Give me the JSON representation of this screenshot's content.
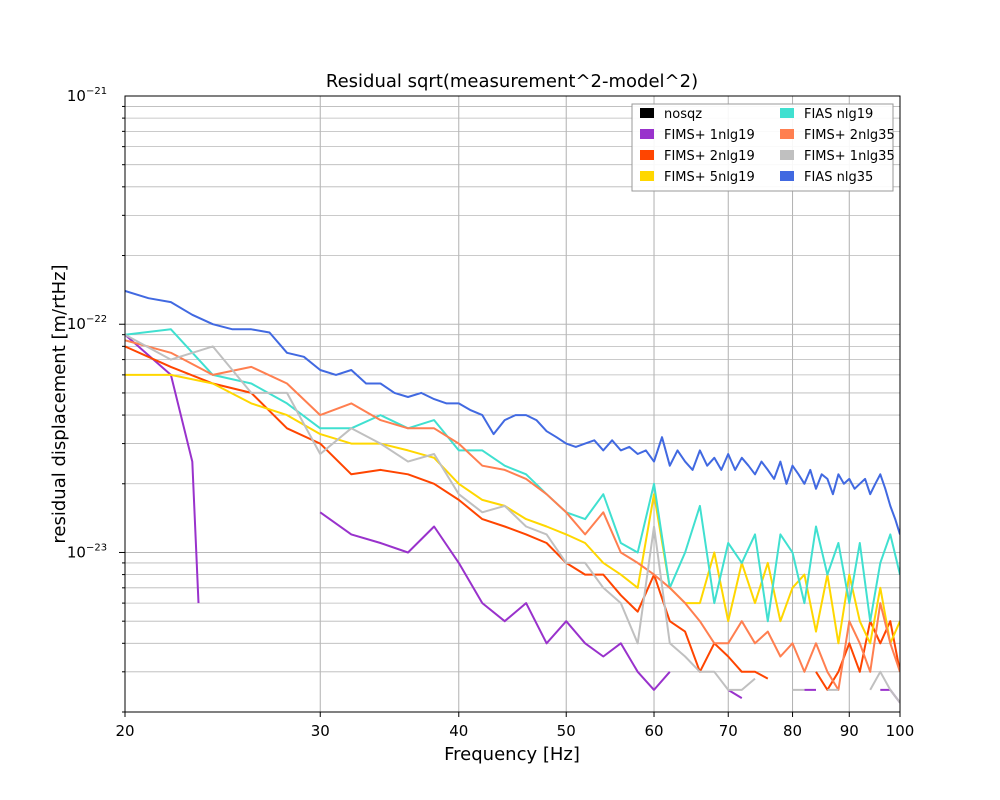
{
  "chart_data": {
    "type": "line",
    "title": "Residual sqrt(measurement^2-model^2)",
    "xlabel": "Frequency [Hz]",
    "ylabel": "residual displacement [m/rtHz]",
    "xscale": "log",
    "yscale": "log",
    "xlim": [
      20,
      100
    ],
    "ylim": [
      2e-24,
      1e-21
    ],
    "xticks": [
      20,
      30,
      40,
      50,
      60,
      70,
      80,
      90,
      100
    ],
    "xtick_labels": [
      "20",
      "30",
      "40",
      "50",
      "60",
      "70",
      "80",
      "90",
      "100"
    ],
    "yticks": [
      1e-23,
      1e-22,
      1e-21
    ],
    "ytick_labels": [
      {
        "base": "10",
        "exp": "−23"
      },
      {
        "base": "10",
        "exp": "−22"
      },
      {
        "base": "10",
        "exp": "−21"
      }
    ],
    "grid": true,
    "legend_position": "top-right",
    "legend_columns": 2,
    "series": [
      {
        "name": "nosqz",
        "color": "#000000",
        "x": [],
        "values": []
      },
      {
        "name": "FIMS+ 1nlg19",
        "color": "#9932CC",
        "x": [
          20,
          22,
          23,
          23.3,
          29,
          30,
          32,
          34,
          36,
          38,
          40,
          42,
          44,
          46,
          48,
          50,
          52,
          54,
          56,
          58,
          60,
          62,
          64,
          66,
          68,
          70,
          72,
          74,
          76,
          78,
          80,
          82,
          84,
          86,
          88,
          90,
          92,
          94,
          96,
          98,
          100
        ],
        "values": [
          9e-23,
          6e-23,
          2.5e-23,
          6e-24,
          null,
          1.5e-23,
          1.2e-23,
          1.1e-23,
          1e-23,
          1.3e-23,
          9e-24,
          6e-24,
          5e-24,
          6e-24,
          4e-24,
          5e-24,
          4e-24,
          3.5e-24,
          4e-24,
          3e-24,
          2.5e-24,
          3e-24,
          null,
          2.5e-24,
          null,
          2.5e-24,
          2.3e-24,
          null,
          2.3e-24,
          null,
          null,
          2.5e-24,
          2.5e-24,
          null,
          null,
          2.5e-24,
          null,
          null,
          2.5e-24,
          2.5e-24,
          2.2e-24
        ]
      },
      {
        "name": "FIMS+ 2nlg19",
        "color": "#FF4500",
        "x": [
          20,
          22,
          24,
          26,
          28,
          30,
          32,
          34,
          36,
          38,
          40,
          42,
          44,
          46,
          48,
          50,
          52,
          54,
          56,
          58,
          60,
          62,
          64,
          66,
          68,
          70,
          72,
          74,
          76,
          78,
          80,
          82,
          84,
          86,
          88,
          90,
          92,
          94,
          96,
          98,
          100
        ],
        "values": [
          8e-23,
          6.5e-23,
          5.5e-23,
          5e-23,
          3.5e-23,
          3e-23,
          2.2e-23,
          2.3e-23,
          2.2e-23,
          2e-23,
          1.7e-23,
          1.4e-23,
          1.3e-23,
          1.2e-23,
          1.1e-23,
          9e-24,
          8e-24,
          8e-24,
          6.5e-24,
          5.5e-24,
          8e-24,
          5e-24,
          4.5e-24,
          3e-24,
          4e-24,
          3.5e-24,
          3e-24,
          3e-24,
          2.8e-24,
          null,
          null,
          null,
          3e-24,
          2.5e-24,
          3e-24,
          4e-24,
          3e-24,
          5e-24,
          4e-24,
          5e-24,
          3e-24
        ]
      },
      {
        "name": "FIMS+ 5nlg19",
        "color": "#FFD700",
        "x": [
          20,
          22,
          24,
          26,
          28,
          30,
          32,
          34,
          36,
          38,
          40,
          42,
          44,
          46,
          48,
          50,
          52,
          54,
          56,
          58,
          60,
          62,
          64,
          66,
          68,
          70,
          72,
          74,
          76,
          78,
          80,
          82,
          84,
          86,
          88,
          90,
          92,
          94,
          96,
          98,
          100
        ],
        "values": [
          6e-23,
          6e-23,
          5.5e-23,
          4.5e-23,
          4e-23,
          3.3e-23,
          3e-23,
          3e-23,
          2.8e-23,
          2.6e-23,
          2e-23,
          1.7e-23,
          1.6e-23,
          1.4e-23,
          1.3e-23,
          1.2e-23,
          1.1e-23,
          9e-24,
          8e-24,
          7e-24,
          1.8e-23,
          7e-24,
          6e-24,
          6e-24,
          1e-23,
          5e-24,
          9e-24,
          6e-24,
          9e-24,
          5e-24,
          7e-24,
          8e-24,
          4.5e-24,
          8e-24,
          4e-24,
          8e-24,
          5e-24,
          4e-24,
          7e-24,
          4e-24,
          5e-24
        ]
      },
      {
        "name": "FIAS nlg19",
        "color": "#40E0D0",
        "x": [
          20,
          22,
          24,
          26,
          28,
          30,
          32,
          34,
          36,
          38,
          40,
          42,
          44,
          46,
          48,
          50,
          52,
          54,
          56,
          58,
          60,
          62,
          64,
          66,
          68,
          70,
          72,
          74,
          76,
          78,
          80,
          82,
          84,
          86,
          88,
          90,
          92,
          94,
          96,
          98,
          100
        ],
        "values": [
          9e-23,
          9.5e-23,
          6e-23,
          5.5e-23,
          4.5e-23,
          3.5e-23,
          3.5e-23,
          4e-23,
          3.5e-23,
          3.8e-23,
          2.8e-23,
          2.8e-23,
          2.4e-23,
          2.2e-23,
          1.8e-23,
          1.5e-23,
          1.4e-23,
          1.8e-23,
          1.1e-23,
          1e-23,
          2e-23,
          7e-24,
          1e-23,
          1.6e-23,
          6e-24,
          1.1e-23,
          9e-24,
          1.2e-23,
          5e-24,
          1.2e-23,
          1e-23,
          6e-24,
          1.3e-23,
          8e-24,
          1.1e-23,
          6e-24,
          1.1e-23,
          5e-24,
          9e-24,
          1.2e-23,
          8e-24
        ]
      },
      {
        "name": "FIMS+ 2nlg35",
        "color": "#FF7F50",
        "x": [
          20,
          22,
          24,
          26,
          28,
          30,
          32,
          34,
          36,
          38,
          40,
          42,
          44,
          46,
          48,
          50,
          52,
          54,
          56,
          58,
          60,
          62,
          64,
          66,
          68,
          70,
          72,
          74,
          76,
          78,
          80,
          82,
          84,
          86,
          88,
          90,
          92,
          94,
          96,
          98,
          100
        ],
        "values": [
          8.5e-23,
          7.5e-23,
          6e-23,
          6.5e-23,
          5.5e-23,
          4e-23,
          4.5e-23,
          3.8e-23,
          3.5e-23,
          3.5e-23,
          3e-23,
          2.4e-23,
          2.3e-23,
          2.1e-23,
          1.8e-23,
          1.5e-23,
          1.2e-23,
          1.5e-23,
          1e-23,
          9e-24,
          8e-24,
          7e-24,
          6e-24,
          5e-24,
          4e-24,
          4e-24,
          5e-24,
          4e-24,
          4.5e-24,
          3.5e-24,
          4e-24,
          3e-24,
          4e-24,
          3e-24,
          2.5e-24,
          5e-24,
          4e-24,
          3e-24,
          6e-24,
          4e-24,
          3e-24
        ]
      },
      {
        "name": "FIMS+ 1nlg35",
        "color": "#C0C0C0",
        "x": [
          20,
          22,
          24,
          26,
          28,
          30,
          32,
          34,
          36,
          38,
          40,
          42,
          44,
          46,
          48,
          50,
          52,
          54,
          56,
          58,
          60,
          62,
          64,
          66,
          68,
          70,
          72,
          74,
          76,
          78,
          80,
          82,
          84,
          86,
          88,
          90,
          92,
          94,
          96,
          98,
          100
        ],
        "values": [
          9e-23,
          7e-23,
          8e-23,
          5e-23,
          5e-23,
          2.7e-23,
          3.5e-23,
          3e-23,
          2.5e-23,
          2.7e-23,
          1.8e-23,
          1.5e-23,
          1.6e-23,
          1.3e-23,
          1.2e-23,
          9e-24,
          9e-24,
          7e-24,
          6e-24,
          4e-24,
          1.3e-23,
          4e-24,
          3.5e-24,
          3e-24,
          3e-24,
          2.5e-24,
          2.5e-24,
          2.8e-24,
          null,
          null,
          2.5e-24,
          2.5e-24,
          null,
          2.5e-24,
          2.5e-24,
          null,
          null,
          2.5e-24,
          3e-24,
          2.5e-24,
          2.2e-24
        ]
      },
      {
        "name": "FIAS nlg35",
        "color": "#4169E1",
        "x": [
          20,
          21,
          22,
          23,
          24,
          25,
          26,
          27,
          28,
          29,
          30,
          31,
          32,
          33,
          34,
          35,
          36,
          37,
          38,
          39,
          40,
          41,
          42,
          43,
          44,
          45,
          46,
          47,
          48,
          49,
          50,
          51,
          52,
          53,
          54,
          55,
          56,
          57,
          58,
          59,
          60,
          61,
          62,
          63,
          64,
          65,
          66,
          67,
          68,
          69,
          70,
          71,
          72,
          73,
          74,
          75,
          76,
          77,
          78,
          79,
          80,
          81,
          82,
          83,
          84,
          85,
          86,
          87,
          88,
          89,
          90,
          91,
          92,
          93,
          94,
          95,
          96,
          97,
          98,
          99,
          100
        ],
        "values": [
          1.4e-22,
          1.3e-22,
          1.25e-22,
          1.1e-22,
          1e-22,
          9.5e-23,
          9.5e-23,
          9.2e-23,
          7.5e-23,
          7.2e-23,
          6.3e-23,
          6e-23,
          6.3e-23,
          5.5e-23,
          5.5e-23,
          5e-23,
          4.8e-23,
          5e-23,
          4.7e-23,
          4.5e-23,
          4.5e-23,
          4.2e-23,
          4e-23,
          3.3e-23,
          3.8e-23,
          4e-23,
          4e-23,
          3.8e-23,
          3.4e-23,
          3.2e-23,
          3e-23,
          2.9e-23,
          3e-23,
          3.1e-23,
          2.8e-23,
          3.1e-23,
          2.8e-23,
          2.9e-23,
          2.7e-23,
          2.8e-23,
          2.5e-23,
          3.2e-23,
          2.4e-23,
          2.8e-23,
          2.5e-23,
          2.3e-23,
          2.8e-23,
          2.4e-23,
          2.6e-23,
          2.3e-23,
          2.7e-23,
          2.3e-23,
          2.6e-23,
          2.4e-23,
          2.2e-23,
          2.5e-23,
          2.3e-23,
          2.1e-23,
          2.5e-23,
          2e-23,
          2.4e-23,
          2.2e-23,
          2e-23,
          2.3e-23,
          1.9e-23,
          2.2e-23,
          2.1e-23,
          1.8e-23,
          2.2e-23,
          2e-23,
          2.1e-23,
          1.9e-23,
          2e-23,
          2.1e-23,
          1.8e-23,
          2e-23,
          2.2e-23,
          1.9e-23,
          1.6e-23,
          1.4e-23,
          1.2e-23
        ]
      }
    ]
  }
}
